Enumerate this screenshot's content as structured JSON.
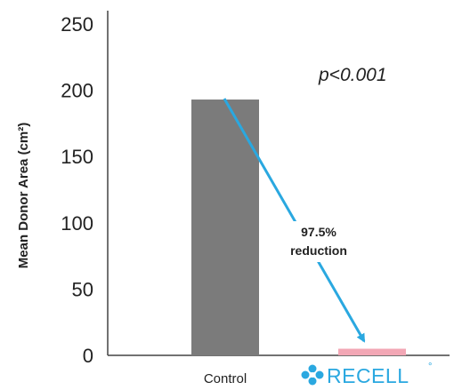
{
  "chart_data": {
    "type": "bar",
    "ylabel": "Mean Donor Area (cm²)",
    "ylim": [
      0,
      250
    ],
    "yticks": [
      0,
      50,
      100,
      150,
      200,
      250
    ],
    "categories": [
      "Control",
      "RECELL"
    ],
    "values": [
      193,
      5
    ],
    "bar_colors": [
      "#7b7b7b",
      "#f2a7b5"
    ],
    "grid": false,
    "annotations": {
      "p_value": "p<0.001",
      "reduction_line1": "97.5%",
      "reduction_line2": "reduction",
      "arrow_color": "#2aa8e0"
    },
    "brand": {
      "name": "RECELL",
      "mark": "°",
      "color": "#2aa8e0",
      "icon": "recell-logo-icon"
    }
  }
}
